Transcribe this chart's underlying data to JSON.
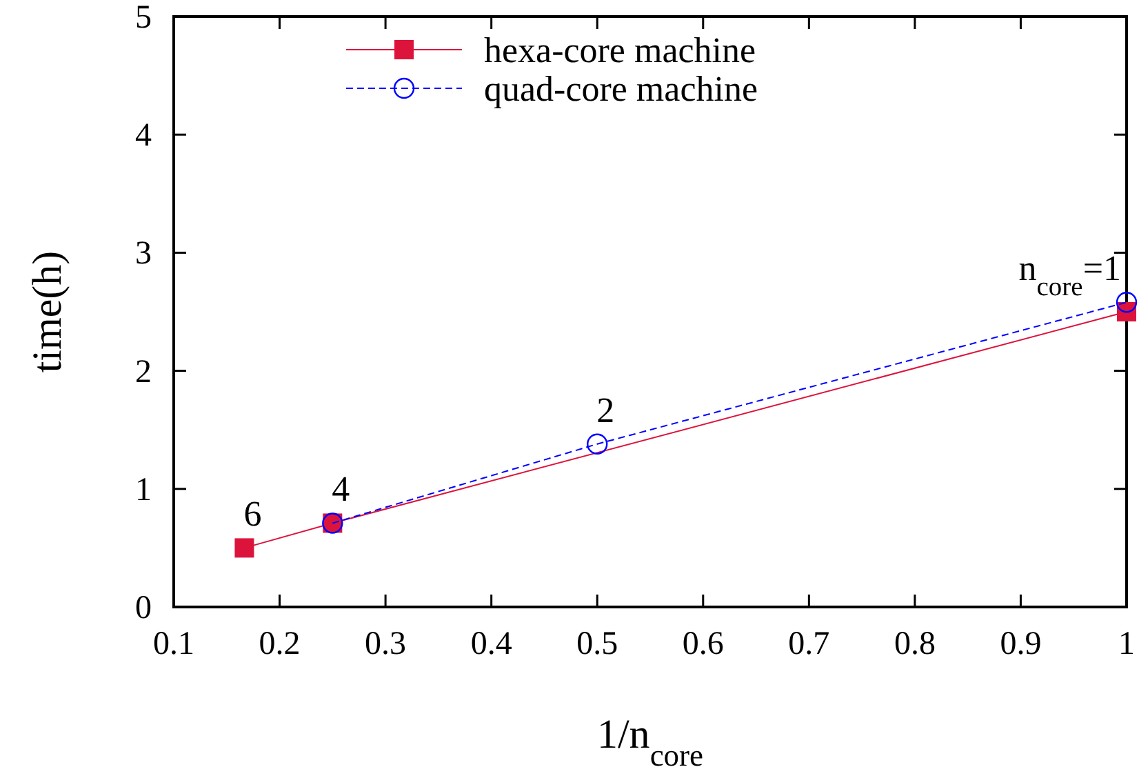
{
  "chart_data": {
    "type": "line",
    "xlabel": "1/n$_{core}$",
    "ylabel": "time(h)",
    "xlim": [
      0.1,
      1
    ],
    "xticks": [
      0.1,
      0.2,
      0.3,
      0.4,
      0.5,
      0.6,
      0.7,
      0.8,
      0.9,
      1
    ],
    "ylim": [
      0,
      5
    ],
    "yticks": [
      0,
      1,
      2,
      3,
      4,
      5
    ],
    "series": [
      {
        "name": "hexa-core machine",
        "color": "#dc143c",
        "marker": "square",
        "line_style": "solid",
        "x": [
          0.1667,
          0.25,
          1
        ],
        "values": [
          0.5,
          0.71,
          2.5
        ]
      },
      {
        "name": "quad-core machine",
        "color": "#0000ff",
        "marker": "circle",
        "line_style": "dashed",
        "x": [
          0.25,
          0.5,
          1
        ],
        "values": [
          0.71,
          1.38,
          2.58
        ]
      }
    ],
    "annotations": [
      {
        "text": "6",
        "x": 0.1667,
        "y": 0.5
      },
      {
        "text": "4",
        "x": 0.25,
        "y": 0.71
      },
      {
        "text": "2",
        "x": 0.5,
        "y": 1.38
      },
      {
        "text": "n$_{core}$=1",
        "x": 1,
        "y": 2.58
      }
    ],
    "grid": false,
    "legend": "top"
  }
}
